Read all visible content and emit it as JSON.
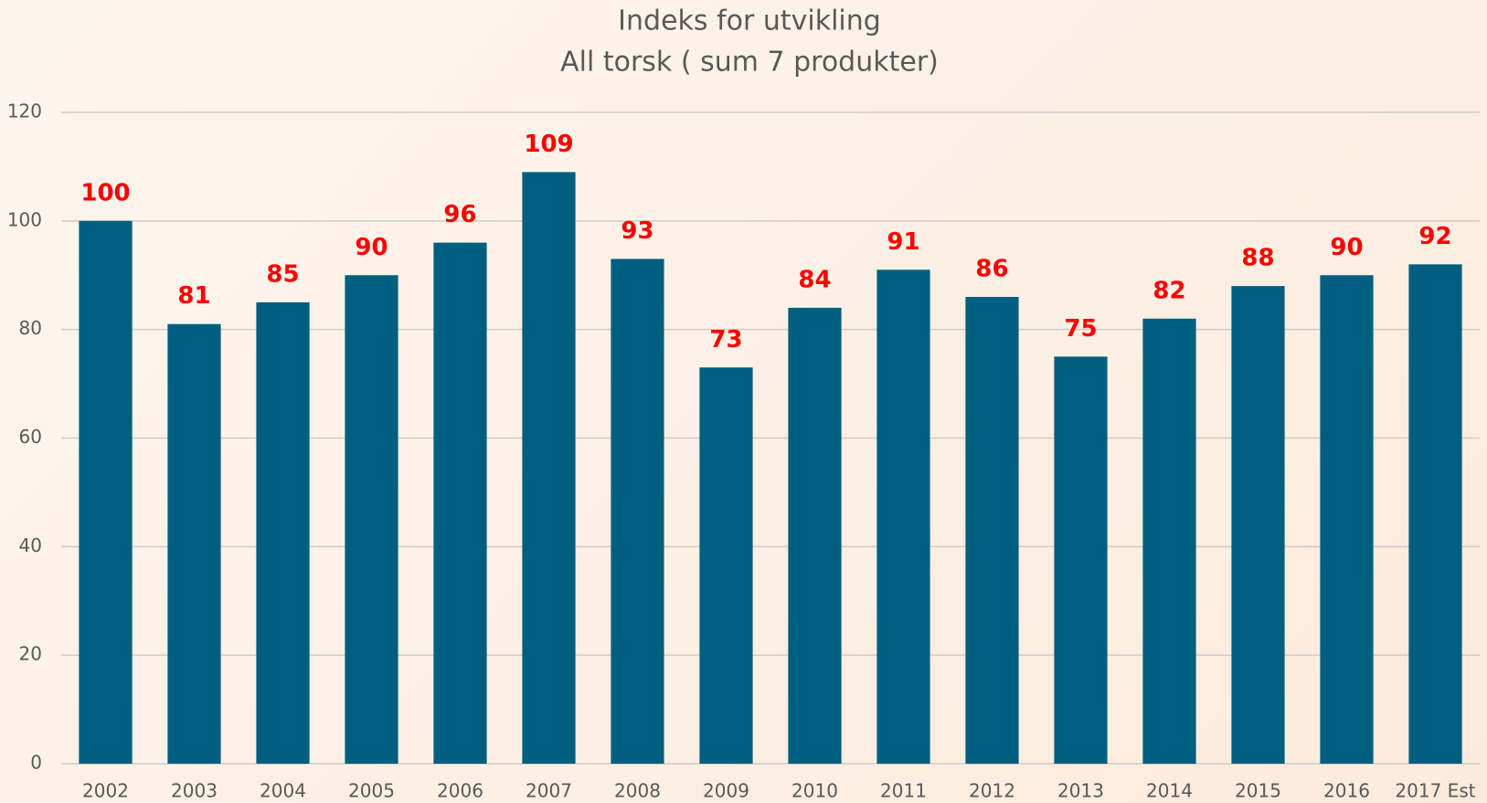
{
  "chart_data": {
    "type": "bar",
    "title": "Indeks for utvikling",
    "subtitle": "All torsk ( sum 7 produkter)",
    "categories": [
      "2002",
      "2003",
      "2004",
      "2005",
      "2006",
      "2007",
      "2008",
      "2009",
      "2010",
      "2011",
      "2012",
      "2013",
      "2014",
      "2015",
      "2016",
      "2017 Est"
    ],
    "values": [
      100,
      81,
      85,
      90,
      96,
      109,
      93,
      73,
      84,
      91,
      86,
      75,
      82,
      88,
      90,
      92
    ],
    "color": "#005f7f",
    "value_label_color": "#ff0000",
    "ylim": [
      0,
      120
    ],
    "yticks": [
      0,
      20,
      40,
      60,
      80,
      100,
      120
    ],
    "grid": true
  }
}
